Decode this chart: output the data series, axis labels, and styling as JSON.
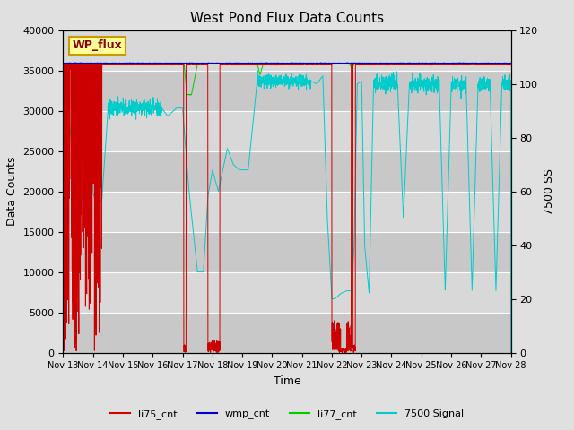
{
  "title": "West Pond Flux Data Counts",
  "xlabel": "Time",
  "ylabel_left": "Data Counts",
  "ylabel_right": "7500 SS",
  "x_tick_labels": [
    "Nov 13",
    "Nov 14",
    "Nov 15",
    "Nov 16",
    "Nov 17",
    "Nov 18",
    "Nov 19",
    "Nov 20",
    "Nov 21",
    "Nov 22",
    "Nov 23",
    "Nov 24",
    "Nov 25",
    "Nov 26",
    "Nov 27",
    "Nov 28"
  ],
  "background_color": "#e0e0e0",
  "plot_bg_dark": "#c8c8c8",
  "plot_bg_light": "#d8d8d8",
  "li75_color": "#cc0000",
  "wmp_color": "#0000cc",
  "li77_color": "#00cc00",
  "signal_color": "#00cccc",
  "legend_box_facecolor": "#ffff99",
  "legend_box_edgecolor": "#cc9900",
  "wp_flux_label": "WP_flux",
  "li75_label": "li75_cnt",
  "wmp_label": "wmp_cnt",
  "li77_label": "li77_cnt",
  "signal_label": "7500 Signal",
  "ylim_left": [
    0,
    40000
  ],
  "ylim_right": [
    0,
    120
  ],
  "right_axis_ticks": [
    0,
    20,
    40,
    60,
    80,
    100,
    120
  ],
  "left_axis_ticks": [
    0,
    5000,
    10000,
    15000,
    20000,
    25000,
    30000,
    35000,
    40000
  ]
}
